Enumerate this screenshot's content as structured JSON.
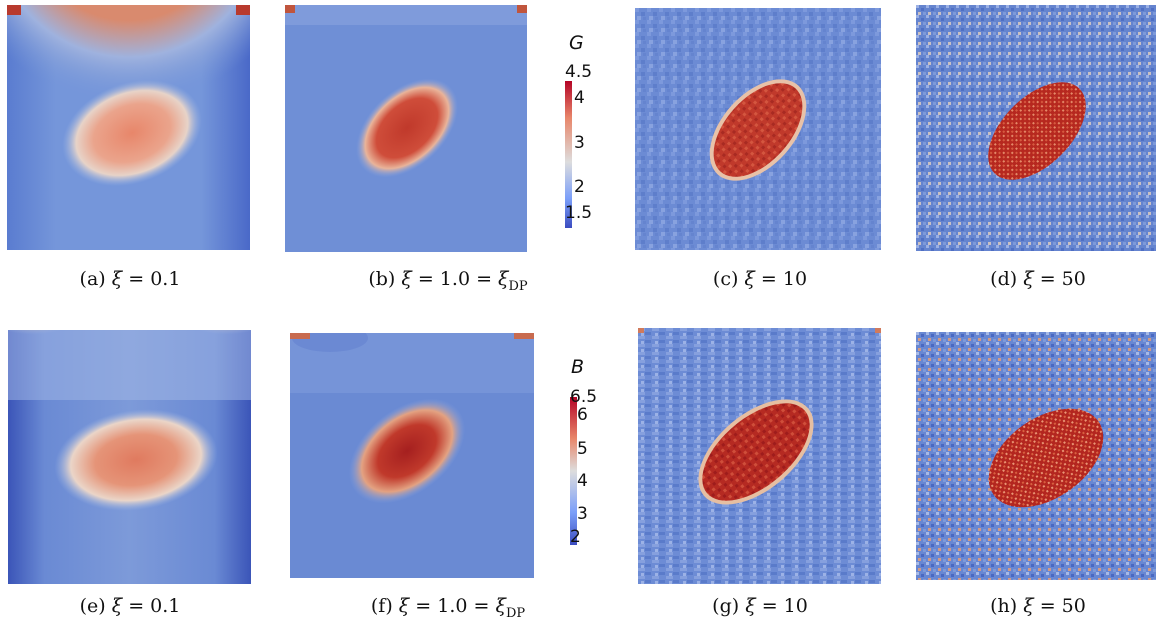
{
  "colors": {
    "low": "#3b4cc0",
    "mid": "#dddddd",
    "high": "#b40426",
    "background": "#4a6fc9"
  },
  "row1": {
    "parameter": "G",
    "colorbar": {
      "title": "G",
      "ticks": [
        "4.5",
        "4",
        "3",
        "2",
        "1.5"
      ]
    },
    "captions": [
      "(a) ξ = 0.1",
      "(b) ξ = 1.0 = ξ_DP",
      "(c) ξ = 10",
      "(d) ξ = 50"
    ]
  },
  "row2": {
    "parameter": "B",
    "colorbar": {
      "title": "B",
      "ticks": [
        "6.5",
        "6",
        "5",
        "4",
        "3",
        "2"
      ]
    },
    "captions": [
      "(e) ξ = 0.1",
      "(f) ξ = 1.0 = ξ_DP",
      "(g) ξ = 10",
      "(h) ξ = 50"
    ]
  }
}
